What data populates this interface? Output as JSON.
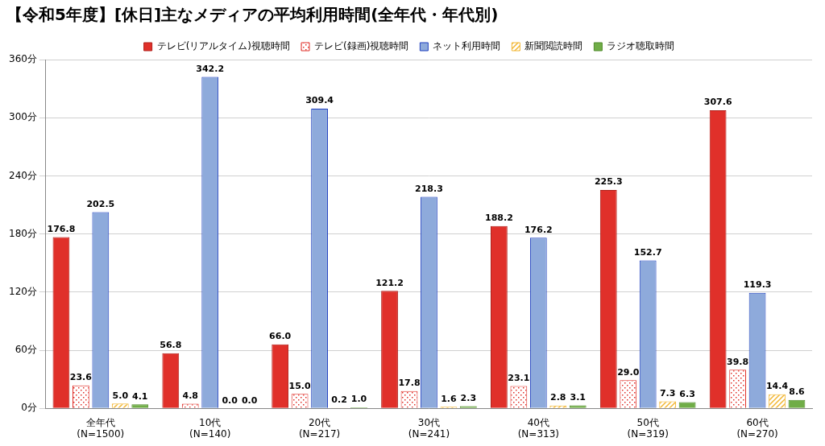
{
  "chart_data": {
    "type": "bar",
    "title": "【令和5年度】[休日]主なメディアの平均利用時間(全年代・年代別)",
    "categories": [
      "全年代\n(N=1500)",
      "10代\n(N=140)",
      "20代\n(N=217)",
      "30代\n(N=241)",
      "40代\n(N=313)",
      "50代\n(N=319)",
      "60代\n(N=270)"
    ],
    "series": [
      {
        "name": "テレビ(リアルタイム)視聴時間",
        "color": "#e0302a",
        "values": [
          176.8,
          56.8,
          66.0,
          121.2,
          188.2,
          225.3,
          307.6
        ],
        "value_labels": [
          "176.8",
          "56.8",
          "66.0",
          "121.2",
          "188.2",
          "225.3",
          "307.6"
        ]
      },
      {
        "name": "テレビ(録画)視聴時間",
        "color": "#e0302a",
        "values": [
          23.6,
          4.8,
          15.0,
          17.8,
          23.1,
          29.0,
          39.8
        ],
        "value_labels": [
          "23.6",
          "4.8",
          "15.0",
          "17.8",
          "23.1",
          "29.0",
          "39.8"
        ]
      },
      {
        "name": "ネット利用時間",
        "color": "#8eaadb",
        "values": [
          202.5,
          342.2,
          309.4,
          218.3,
          176.2,
          152.7,
          119.3
        ],
        "value_labels": [
          "202.5",
          "342.2",
          "309.4",
          "218.3",
          "176.2",
          "152.7",
          "119.3"
        ]
      },
      {
        "name": "新聞閲読時間",
        "color": "#f2b632",
        "values": [
          5.0,
          0.0,
          0.2,
          1.6,
          2.8,
          7.3,
          14.4
        ],
        "value_labels": [
          "5.0",
          "0.0",
          "0.2",
          "1.6",
          "2.8",
          "7.3",
          "14.4"
        ]
      },
      {
        "name": "ラジオ聴取時間",
        "color": "#70ad47",
        "values": [
          4.1,
          0.0,
          1.0,
          2.3,
          3.1,
          6.3,
          8.6
        ],
        "value_labels": [
          "4.1",
          "0.0",
          "1.0",
          "2.3",
          "3.1",
          "6.3",
          "8.6"
        ]
      }
    ],
    "ylim": [
      0,
      360
    ],
    "yticks": [
      {
        "value": 0,
        "label": "0分"
      },
      {
        "value": 60,
        "label": "60分"
      },
      {
        "value": 120,
        "label": "120分"
      },
      {
        "value": 180,
        "label": "180分"
      },
      {
        "value": 240,
        "label": "240分"
      },
      {
        "value": 300,
        "label": "300分"
      },
      {
        "value": 360,
        "label": "360分"
      }
    ],
    "grid": true,
    "legend": "top",
    "data_labels": true
  }
}
